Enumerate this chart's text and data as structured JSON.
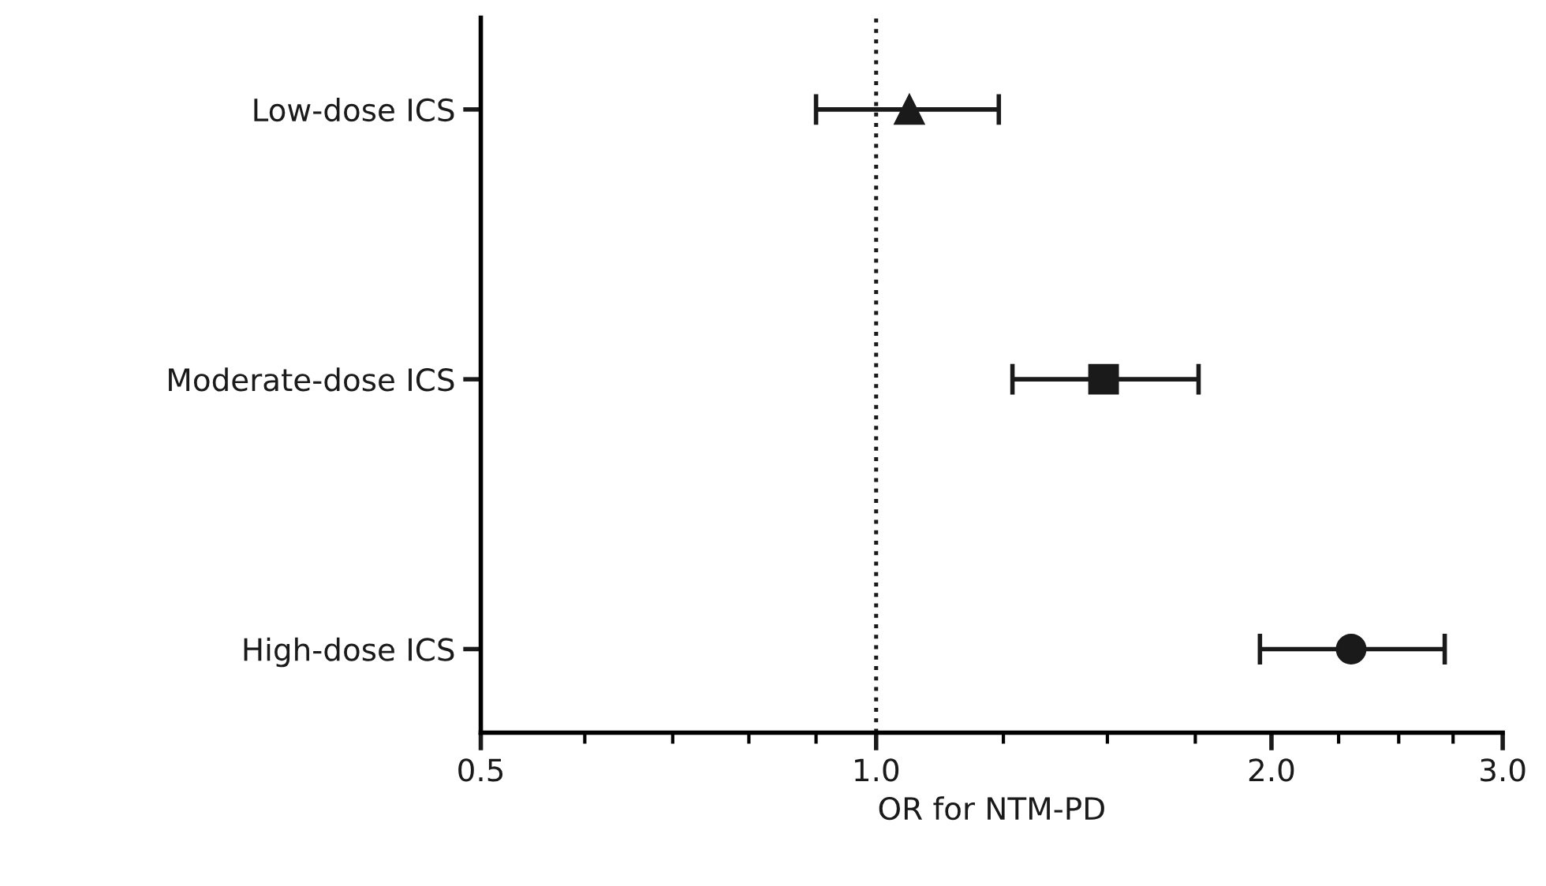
{
  "chart_data": {
    "type": "scatter",
    "orientation": "horizontal",
    "xlabel": "OR for NTM-PD",
    "categories": [
      "Low-dose ICS",
      "Moderate-dose ICS",
      "High-dose ICS"
    ],
    "series": [
      {
        "color": "#1a1a1a",
        "marker": "triangle",
        "values": [
          1.06,
          null,
          null
        ],
        "errors": [
          [
            0.9,
            1.24
          ],
          null,
          null
        ]
      },
      {
        "color": "#1a1a1a",
        "marker": "square",
        "values": [
          null,
          1.49,
          null
        ],
        "errors": [
          null,
          [
            1.27,
            1.76
          ],
          null
        ]
      },
      {
        "color": "#1a1a1a",
        "marker": "circle",
        "values": [
          null,
          null,
          2.3
        ],
        "errors": [
          null,
          null,
          [
            1.96,
            2.71
          ]
        ]
      }
    ],
    "log": "x",
    "xlim": [
      0.5,
      3.0
    ],
    "xticks": [
      0.5,
      {
        "value": 1,
        "label": "1.0"
      },
      {
        "value": 2,
        "label": "2.0"
      },
      {
        "value": 3,
        "label": "3.0"
      }
    ],
    "ref_lines": [
      {
        "axis": "x",
        "value": 1,
        "color": "#1a1a1a",
        "line_style": "dotted"
      }
    ],
    "grid": false,
    "legend": false
  }
}
